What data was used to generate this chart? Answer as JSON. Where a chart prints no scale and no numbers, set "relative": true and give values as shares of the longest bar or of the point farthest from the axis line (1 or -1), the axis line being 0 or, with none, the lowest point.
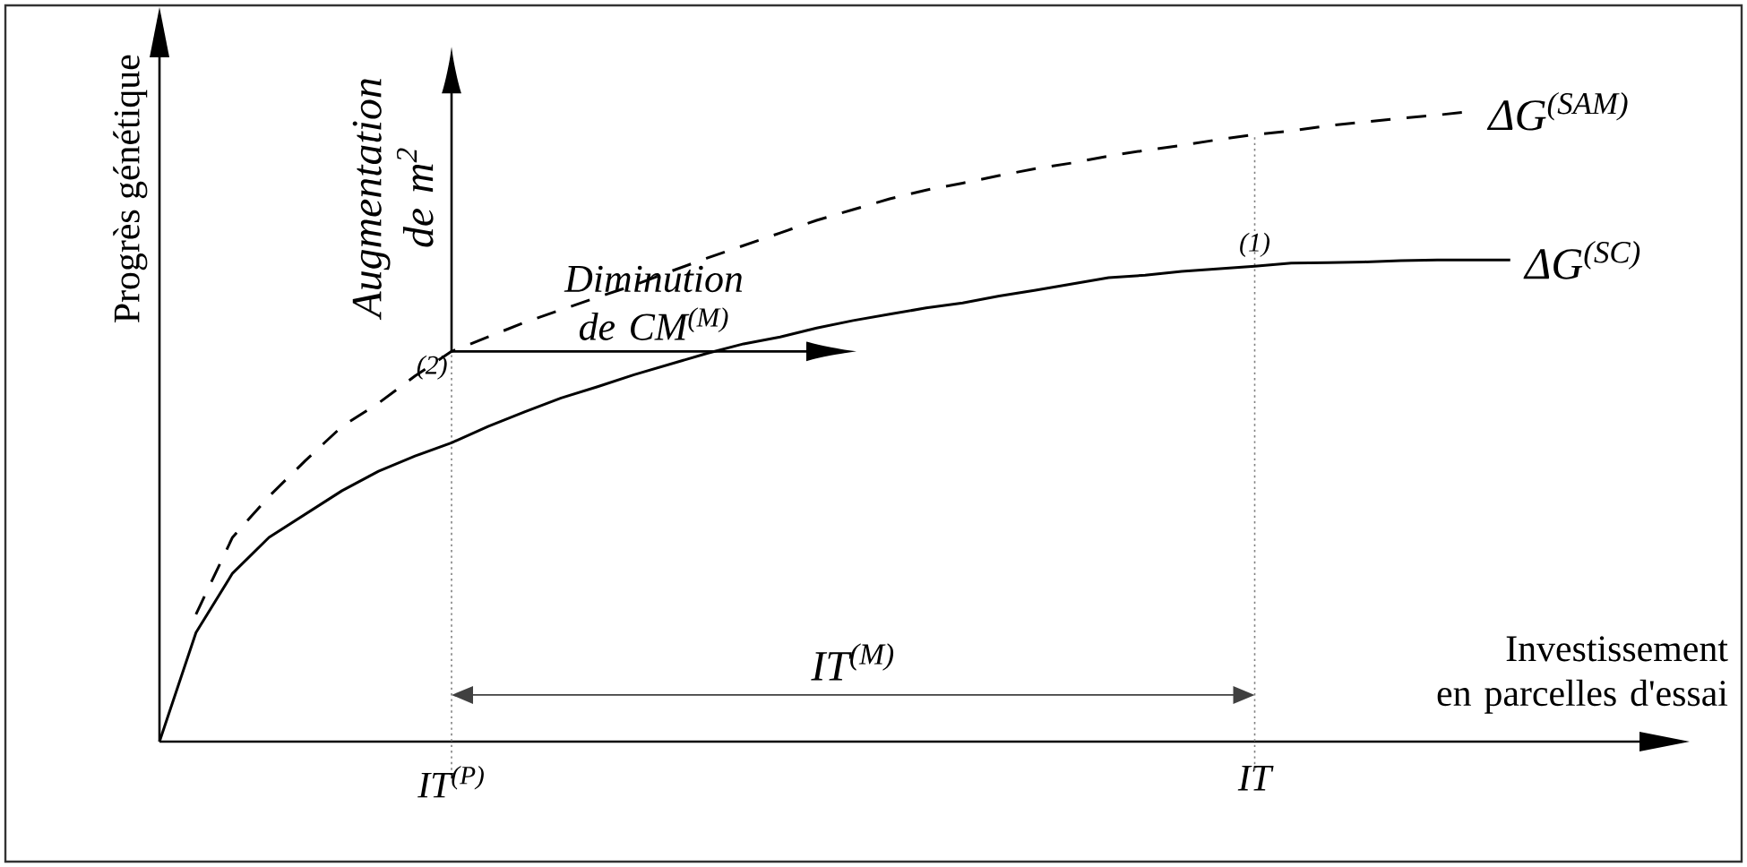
{
  "chart_data": {
    "type": "line",
    "relative": true,
    "xlabel": "Investissement en parcelles d'essai",
    "ylabel": "Progrès génétique",
    "tick_labels": "x",
    "categories": [
      null,
      null,
      null,
      null,
      null,
      null,
      null,
      null,
      "IT$^{(P)}$",
      null,
      null,
      null,
      null,
      null,
      null,
      null,
      null,
      null,
      null,
      null,
      null,
      null,
      null,
      null,
      null,
      null,
      null,
      null,
      null,
      null,
      "IT",
      null,
      null,
      null,
      null,
      null,
      null,
      null
    ],
    "series": [
      {
        "name": "ΔG$^{(SAM)}$",
        "color": "#000000",
        "line_style": "dashed",
        "values": [
          null,
          0.202,
          0.324,
          0.389,
          0.446,
          0.5,
          0.537,
          0.58,
          0.619,
          0.642,
          0.665,
          0.685,
          0.705,
          0.724,
          0.746,
          0.767,
          0.787,
          0.807,
          0.827,
          0.844,
          0.861,
          0.875,
          0.886,
          0.898,
          0.909,
          0.918,
          0.929,
          0.938,
          0.946,
          0.955,
          0.963,
          0.969,
          0.977,
          0.983,
          0.989,
          0.994,
          1,
          null
        ]
      },
      {
        "name": "ΔG$^{(SC)}$",
        "color": "#000000",
        "line_style": "solid",
        "values": [
          0,
          0.173,
          0.267,
          0.324,
          0.361,
          0.398,
          0.429,
          0.453,
          0.474,
          0.5,
          0.523,
          0.545,
          0.563,
          0.582,
          0.599,
          0.616,
          0.631,
          0.642,
          0.656,
          0.668,
          0.678,
          0.688,
          0.696,
          0.707,
          0.716,
          0.726,
          0.736,
          0.74,
          0.746,
          0.75,
          0.754,
          0.759,
          0.76,
          0.761,
          0.763,
          0.764,
          0.764,
          0.764
        ]
      }
    ],
    "ref_lines": [
      {
        "axis": "x",
        "value": "IT$^{(P)}$",
        "line_style": "dotted",
        "color": "#808080"
      },
      {
        "axis": "x",
        "value": "IT",
        "line_style": "dotted",
        "color": "#808080"
      }
    ],
    "annotations": [
      "Augmentation de m$^{2}$",
      "Diminution de CM$^{(M)}$",
      "IT$^{(M)}$",
      {
        "text": "(1)",
        "x": "IT",
        "y": 0.754
      },
      {
        "text": "(2)",
        "x": "IT$^{(P)}$",
        "y": 0.619
      }
    ]
  }
}
